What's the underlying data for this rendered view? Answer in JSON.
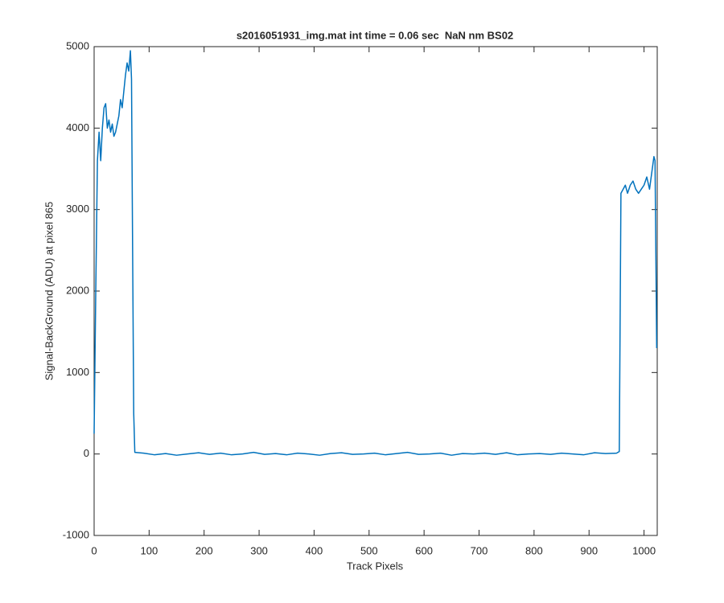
{
  "chart_data": {
    "type": "line",
    "title": "s2016051931_img.mat int time = 0.06 sec  NaN nm BS02",
    "x_label": "Track Pixels",
    "y_label": "Signal-BackGround (ADU) at pixel 865",
    "xlim": [
      0,
      1024
    ],
    "ylim": [
      -1000,
      5000
    ],
    "xticks": [
      0,
      100,
      200,
      300,
      400,
      500,
      600,
      700,
      800,
      900,
      1000
    ],
    "yticks": [
      -1000,
      0,
      1000,
      2000,
      3000,
      4000,
      5000
    ],
    "grid": false,
    "series": [
      {
        "color": "#0072bd",
        "x": [
          0,
          3,
          6,
          9,
          12,
          15,
          18,
          21,
          24,
          27,
          30,
          33,
          36,
          39,
          42,
          45,
          48,
          51,
          54,
          57,
          60,
          63,
          66,
          68,
          70,
          72,
          74,
          90,
          110,
          130,
          150,
          170,
          190,
          210,
          230,
          250,
          270,
          290,
          310,
          330,
          350,
          370,
          390,
          410,
          430,
          450,
          470,
          490,
          510,
          530,
          550,
          570,
          590,
          610,
          630,
          650,
          670,
          690,
          710,
          730,
          750,
          770,
          790,
          810,
          830,
          850,
          870,
          890,
          910,
          930,
          950,
          955,
          958,
          962,
          966,
          970,
          975,
          980,
          985,
          990,
          995,
          1000,
          1005,
          1010,
          1015,
          1018,
          1020,
          1023
        ],
        "values": [
          250,
          2000,
          3600,
          3950,
          3600,
          4000,
          4250,
          4300,
          4000,
          4100,
          3950,
          4050,
          3900,
          3950,
          4050,
          4150,
          4350,
          4250,
          4450,
          4650,
          4800,
          4700,
          4950,
          4600,
          2500,
          500,
          20,
          10,
          -10,
          5,
          -15,
          0,
          15,
          -5,
          10,
          -10,
          0,
          20,
          -5,
          5,
          -10,
          10,
          0,
          -15,
          5,
          15,
          -5,
          0,
          10,
          -10,
          5,
          20,
          -5,
          0,
          10,
          -15,
          5,
          0,
          10,
          -5,
          15,
          -10,
          0,
          5,
          -5,
          10,
          0,
          -10,
          15,
          5,
          10,
          30,
          3200,
          3250,
          3300,
          3200,
          3300,
          3350,
          3250,
          3200,
          3250,
          3300,
          3400,
          3250,
          3500,
          3650,
          3600,
          1300
        ]
      }
    ]
  }
}
